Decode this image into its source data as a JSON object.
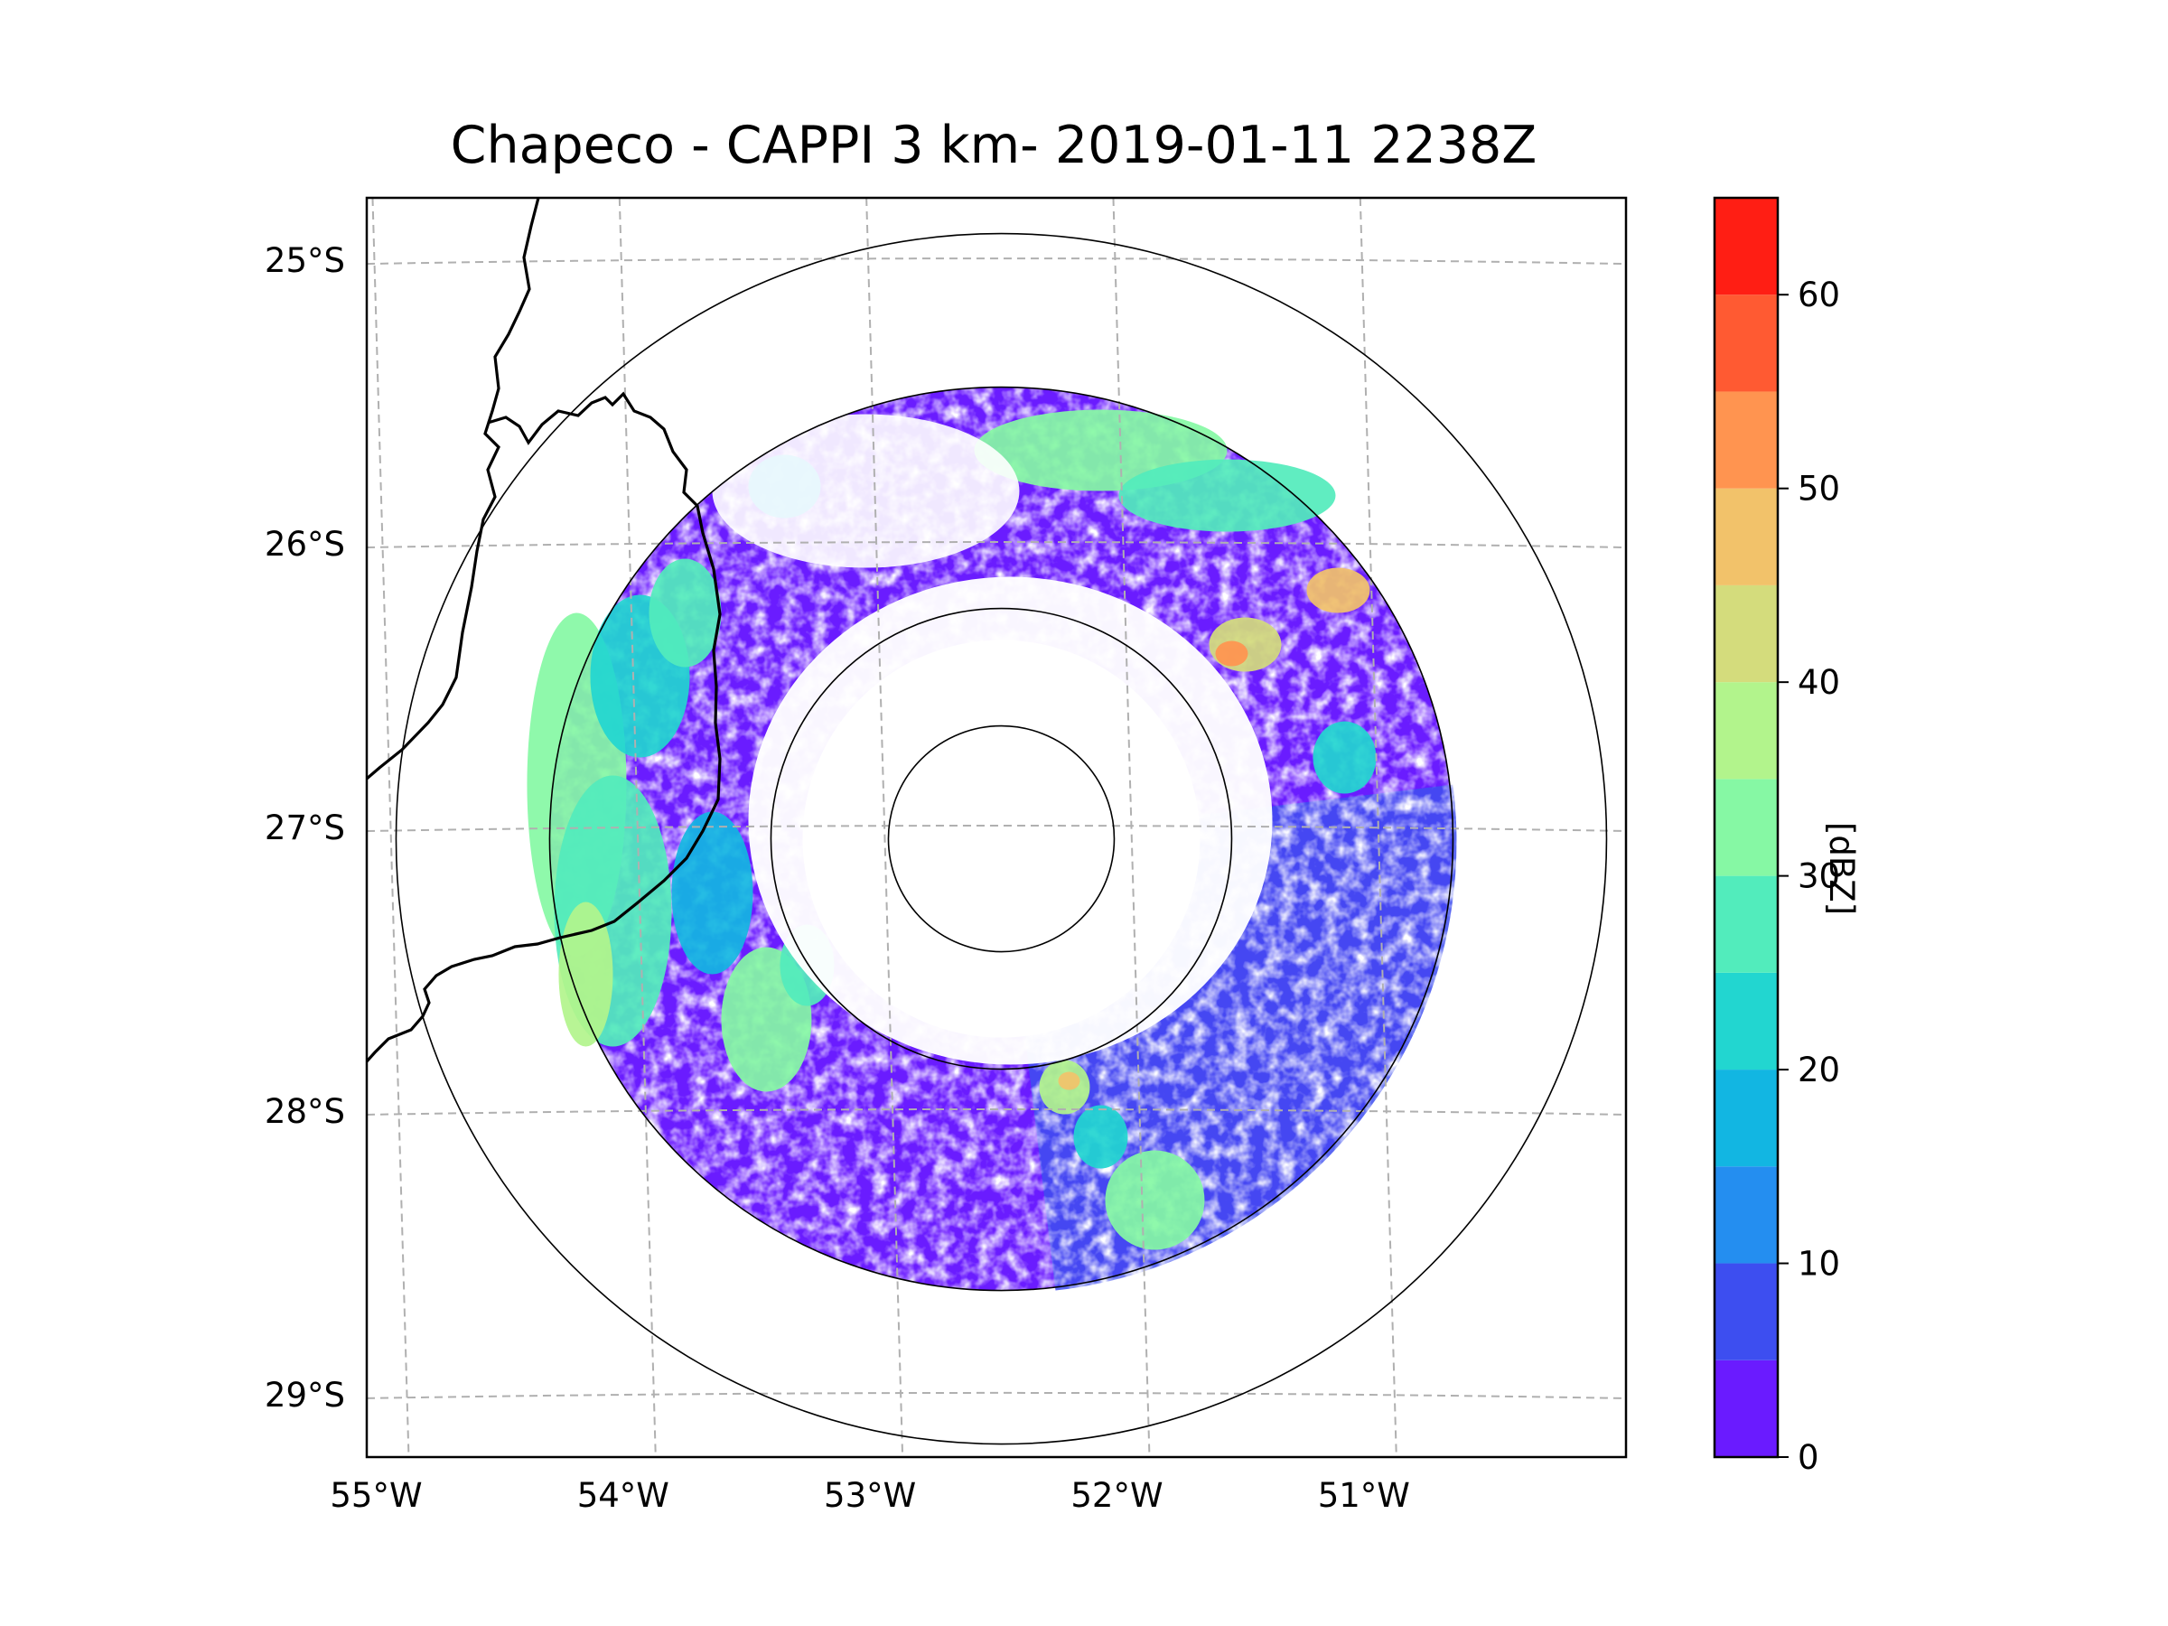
{
  "figure": {
    "title": "Chapeco - CAPPI 3 km- 2019-01-11 2238Z"
  },
  "chart_data": {
    "type": "map",
    "projection": "lat/lon radar CAPPI",
    "radar_site": {
      "name": "Chapeco",
      "lat": -27.04,
      "lon": -52.6
    },
    "range_rings": [
      "inner",
      "second",
      "third",
      "outer"
    ],
    "extent": {
      "lon": [
        -55.17,
        -50.07
      ],
      "lat": [
        -29.22,
        -24.78
      ]
    },
    "lon_ticks": [
      {
        "value": -55,
        "label": "55°W"
      },
      {
        "value": -54,
        "label": "54°W"
      },
      {
        "value": -53,
        "label": "53°W"
      },
      {
        "value": -52,
        "label": "52°W"
      },
      {
        "value": -51,
        "label": "51°W"
      }
    ],
    "lat_ticks": [
      {
        "value": -25,
        "label": "25°S"
      },
      {
        "value": -26,
        "label": "26°S"
      },
      {
        "value": -27,
        "label": "27°S"
      },
      {
        "value": -28,
        "label": "28°S"
      },
      {
        "value": -29,
        "label": "29°S"
      }
    ],
    "gridlines": true,
    "colorbar": {
      "label": "[dBZ]",
      "min": 0,
      "max": 65,
      "bounds": [
        0,
        5,
        10,
        15,
        20,
        25,
        30,
        35,
        40,
        45,
        50,
        55,
        60,
        65
      ],
      "ticks": [
        {
          "value": 0,
          "label": "0"
        },
        {
          "value": 10,
          "label": "10"
        },
        {
          "value": 20,
          "label": "20"
        },
        {
          "value": 30,
          "label": "30"
        },
        {
          "value": 40,
          "label": "40"
        },
        {
          "value": 50,
          "label": "50"
        },
        {
          "value": 60,
          "label": "60"
        }
      ],
      "colors": [
        "#6a1bff",
        "#3d4ef0",
        "#248ef0",
        "#12b6e2",
        "#22d6d0",
        "#52ecbc",
        "#86f8a4",
        "#b2f48c",
        "#d4dc7c",
        "#f2c26a",
        "#ff9450",
        "#ff5a32",
        "#ff1e14"
      ]
    },
    "echo_features": [
      "light echoes (0-15 dBZ) across eastern and southern sectors",
      "band 25-40 dBZ along western edge",
      "northern arc 25-40 dBZ",
      "cells 45-55 dBZ in northeast",
      "cell 40-50 dBZ south-southeast of radar"
    ]
  }
}
